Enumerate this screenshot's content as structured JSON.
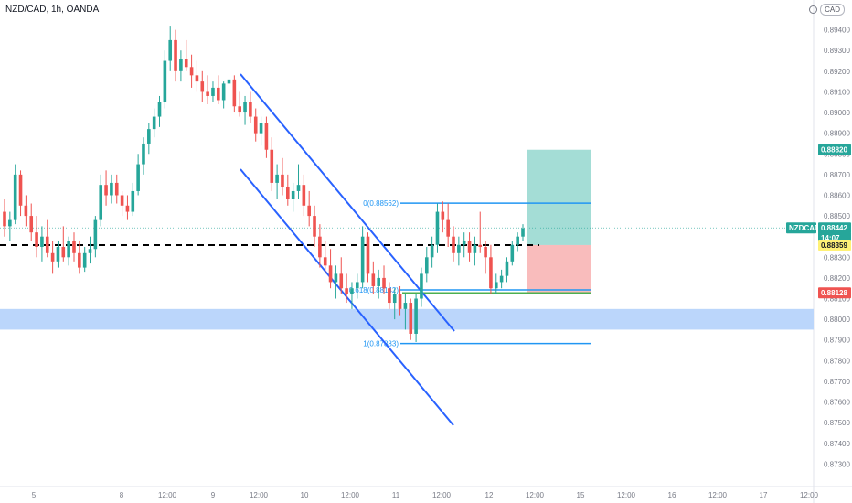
{
  "header": {
    "title": "NZD/CAD, 1h, OANDA",
    "currency_badge": "CAD"
  },
  "colors": {
    "up": "#26a69a",
    "down": "#ef5350",
    "channel": "#2962ff",
    "fib": "#2196f3",
    "zone": "#bbd6fb",
    "target": "#a4ddd6",
    "stop": "#f9bcbc",
    "stop_line": "#4caf50"
  },
  "chart_data": {
    "type": "candlestick",
    "symbol": "NZDCAD",
    "ylim": [
      0.872,
      0.895
    ],
    "y_ticks": [
      "0.89400",
      "0.89300",
      "0.89200",
      "0.89100",
      "0.89000",
      "0.88900",
      "0.88800",
      "0.88700",
      "0.88600",
      "0.88500",
      "0.88400",
      "0.88300",
      "0.88200",
      "0.88100",
      "0.88000",
      "0.87900",
      "0.87800",
      "0.87700",
      "0.87600",
      "0.87500",
      "0.87400",
      "0.87300"
    ],
    "x_ticks": [
      "5",
      "8",
      "12:00",
      "9",
      "12:00",
      "10",
      "12:00",
      "11",
      "12:00",
      "12",
      "12:00",
      "15",
      "12:00",
      "16",
      "12:00",
      "17",
      "12:00"
    ],
    "price_labels": [
      {
        "label": "0.88820",
        "value": 0.8882,
        "kind": "target"
      },
      {
        "label": "NZDCAD",
        "value": 0.88442,
        "kind": "symbol-name"
      },
      {
        "label": "0.88442",
        "value": 0.88442,
        "kind": "last"
      },
      {
        "label": "14:07",
        "value": 0.88442,
        "kind": "countdown"
      },
      {
        "label": "0.88359",
        "value": 0.88359,
        "kind": "entry"
      },
      {
        "label": "0.88128",
        "value": 0.88128,
        "kind": "stop"
      }
    ],
    "fib_levels": [
      {
        "label": "0(0.88562)",
        "value": 0.88562
      },
      {
        "label": "0.618(0.88142)",
        "value": 0.88142
      },
      {
        "label": "1(0.87883)",
        "value": 0.87883
      }
    ],
    "position": {
      "entry": 0.88359,
      "target": 0.8882,
      "stop": 0.88128
    },
    "support_zone": [
      0.8795,
      0.8805
    ],
    "candles": [
      [
        0.8852,
        0.8858,
        0.884,
        0.8845
      ],
      [
        0.8845,
        0.8852,
        0.8838,
        0.8848
      ],
      [
        0.8848,
        0.8875,
        0.8846,
        0.887
      ],
      [
        0.887,
        0.8872,
        0.885,
        0.8855
      ],
      [
        0.8855,
        0.886,
        0.8845,
        0.885
      ],
      [
        0.885,
        0.8856,
        0.8838,
        0.8842
      ],
      [
        0.8842,
        0.885,
        0.883,
        0.8835
      ],
      [
        0.8835,
        0.8845,
        0.8828,
        0.884
      ],
      [
        0.884,
        0.8848,
        0.883,
        0.8832
      ],
      [
        0.8832,
        0.8838,
        0.8822,
        0.8828
      ],
      [
        0.8828,
        0.8838,
        0.8825,
        0.8835
      ],
      [
        0.8835,
        0.8845,
        0.8828,
        0.883
      ],
      [
        0.883,
        0.884,
        0.8826,
        0.8838
      ],
      [
        0.8838,
        0.8842,
        0.8828,
        0.8832
      ],
      [
        0.8832,
        0.8838,
        0.8822,
        0.8825
      ],
      [
        0.8825,
        0.8835,
        0.8823,
        0.8832
      ],
      [
        0.8832,
        0.884,
        0.8827,
        0.8834
      ],
      [
        0.8834,
        0.885,
        0.883,
        0.8848
      ],
      [
        0.8848,
        0.887,
        0.8845,
        0.8865
      ],
      [
        0.8865,
        0.8872,
        0.8855,
        0.886
      ],
      [
        0.886,
        0.887,
        0.8856,
        0.8866
      ],
      [
        0.8866,
        0.887,
        0.8856,
        0.886
      ],
      [
        0.886,
        0.8862,
        0.885,
        0.8855
      ],
      [
        0.8855,
        0.886,
        0.8848,
        0.8852
      ],
      [
        0.8852,
        0.8866,
        0.885,
        0.8862
      ],
      [
        0.8862,
        0.888,
        0.886,
        0.8875
      ],
      [
        0.8875,
        0.8888,
        0.887,
        0.8885
      ],
      [
        0.8885,
        0.8895,
        0.888,
        0.8892
      ],
      [
        0.8892,
        0.8902,
        0.8888,
        0.8898
      ],
      [
        0.8898,
        0.8908,
        0.8893,
        0.8905
      ],
      [
        0.8905,
        0.893,
        0.8902,
        0.8925
      ],
      [
        0.8925,
        0.8942,
        0.892,
        0.8935
      ],
      [
        0.8935,
        0.894,
        0.8915,
        0.892
      ],
      [
        0.892,
        0.893,
        0.8915,
        0.8926
      ],
      [
        0.8926,
        0.8935,
        0.892,
        0.8922
      ],
      [
        0.8922,
        0.8928,
        0.8912,
        0.8918
      ],
      [
        0.8918,
        0.8925,
        0.891,
        0.8915
      ],
      [
        0.8915,
        0.892,
        0.8905,
        0.891
      ],
      [
        0.891,
        0.8918,
        0.8904,
        0.8908
      ],
      [
        0.8908,
        0.8915,
        0.8905,
        0.8912
      ],
      [
        0.8912,
        0.8918,
        0.8904,
        0.8906
      ],
      [
        0.8906,
        0.8915,
        0.8902,
        0.8914
      ],
      [
        0.8914,
        0.892,
        0.891,
        0.8916
      ],
      [
        0.8916,
        0.8918,
        0.89,
        0.8903
      ],
      [
        0.8903,
        0.891,
        0.8898,
        0.89
      ],
      [
        0.89,
        0.8908,
        0.8894,
        0.8905
      ],
      [
        0.8905,
        0.891,
        0.8895,
        0.8898
      ],
      [
        0.8898,
        0.8902,
        0.8886,
        0.889
      ],
      [
        0.889,
        0.8898,
        0.8884,
        0.8895
      ],
      [
        0.8895,
        0.8898,
        0.8878,
        0.8882
      ],
      [
        0.8882,
        0.8888,
        0.8862,
        0.8866
      ],
      [
        0.8866,
        0.8875,
        0.8858,
        0.887
      ],
      [
        0.887,
        0.8878,
        0.886,
        0.8864
      ],
      [
        0.8864,
        0.887,
        0.8855,
        0.8858
      ],
      [
        0.8858,
        0.8866,
        0.8852,
        0.8862
      ],
      [
        0.8862,
        0.8875,
        0.8858,
        0.8865
      ],
      [
        0.8865,
        0.887,
        0.885,
        0.8855
      ],
      [
        0.8855,
        0.8862,
        0.8845,
        0.885
      ],
      [
        0.885,
        0.8855,
        0.8835,
        0.884
      ],
      [
        0.884,
        0.8846,
        0.8825,
        0.883
      ],
      [
        0.883,
        0.8838,
        0.8822,
        0.8826
      ],
      [
        0.8826,
        0.8834,
        0.8815,
        0.8818
      ],
      [
        0.8818,
        0.8826,
        0.881,
        0.8822
      ],
      [
        0.8822,
        0.883,
        0.8812,
        0.8815
      ],
      [
        0.8815,
        0.8822,
        0.8808,
        0.8812
      ],
      [
        0.8812,
        0.8818,
        0.8805,
        0.8815
      ],
      [
        0.8815,
        0.8822,
        0.881,
        0.8818
      ],
      [
        0.8818,
        0.8845,
        0.8815,
        0.884
      ],
      [
        0.884,
        0.8842,
        0.8818,
        0.8822
      ],
      [
        0.8822,
        0.8828,
        0.8812,
        0.8816
      ],
      [
        0.8816,
        0.8824,
        0.881,
        0.882
      ],
      [
        0.882,
        0.8826,
        0.8812,
        0.8815
      ],
      [
        0.8815,
        0.8818,
        0.8805,
        0.8808
      ],
      [
        0.8808,
        0.8815,
        0.88,
        0.8812
      ],
      [
        0.8812,
        0.8816,
        0.8802,
        0.8805
      ],
      [
        0.8805,
        0.8812,
        0.8795,
        0.8808
      ],
      [
        0.8808,
        0.881,
        0.879,
        0.8793
      ],
      [
        0.8793,
        0.8812,
        0.8789,
        0.881
      ],
      [
        0.881,
        0.8825,
        0.8806,
        0.8822
      ],
      [
        0.8822,
        0.8835,
        0.8818,
        0.883
      ],
      [
        0.883,
        0.884,
        0.8825,
        0.8836
      ],
      [
        0.8836,
        0.8856,
        0.8832,
        0.8852
      ],
      [
        0.8852,
        0.8857,
        0.8842,
        0.8848
      ],
      [
        0.8848,
        0.8856,
        0.8835,
        0.884
      ],
      [
        0.884,
        0.8845,
        0.8828,
        0.8832
      ],
      [
        0.8832,
        0.884,
        0.8826,
        0.8836
      ],
      [
        0.8836,
        0.8842,
        0.883,
        0.8838
      ],
      [
        0.8838,
        0.8842,
        0.8828,
        0.8832
      ],
      [
        0.8832,
        0.884,
        0.8826,
        0.8836
      ],
      [
        0.8836,
        0.8852,
        0.8832,
        0.8835
      ],
      [
        0.8835,
        0.8838,
        0.8822,
        0.883
      ],
      [
        0.883,
        0.8836,
        0.8812,
        0.8815
      ],
      [
        0.8815,
        0.8822,
        0.8812,
        0.8818
      ],
      [
        0.8818,
        0.8824,
        0.8815,
        0.8821
      ],
      [
        0.8821,
        0.883,
        0.8818,
        0.8828
      ],
      [
        0.8828,
        0.8838,
        0.8826,
        0.8836
      ],
      [
        0.8836,
        0.8842,
        0.8833,
        0.884
      ],
      [
        0.884,
        0.8846,
        0.8838,
        0.8844
      ]
    ]
  }
}
